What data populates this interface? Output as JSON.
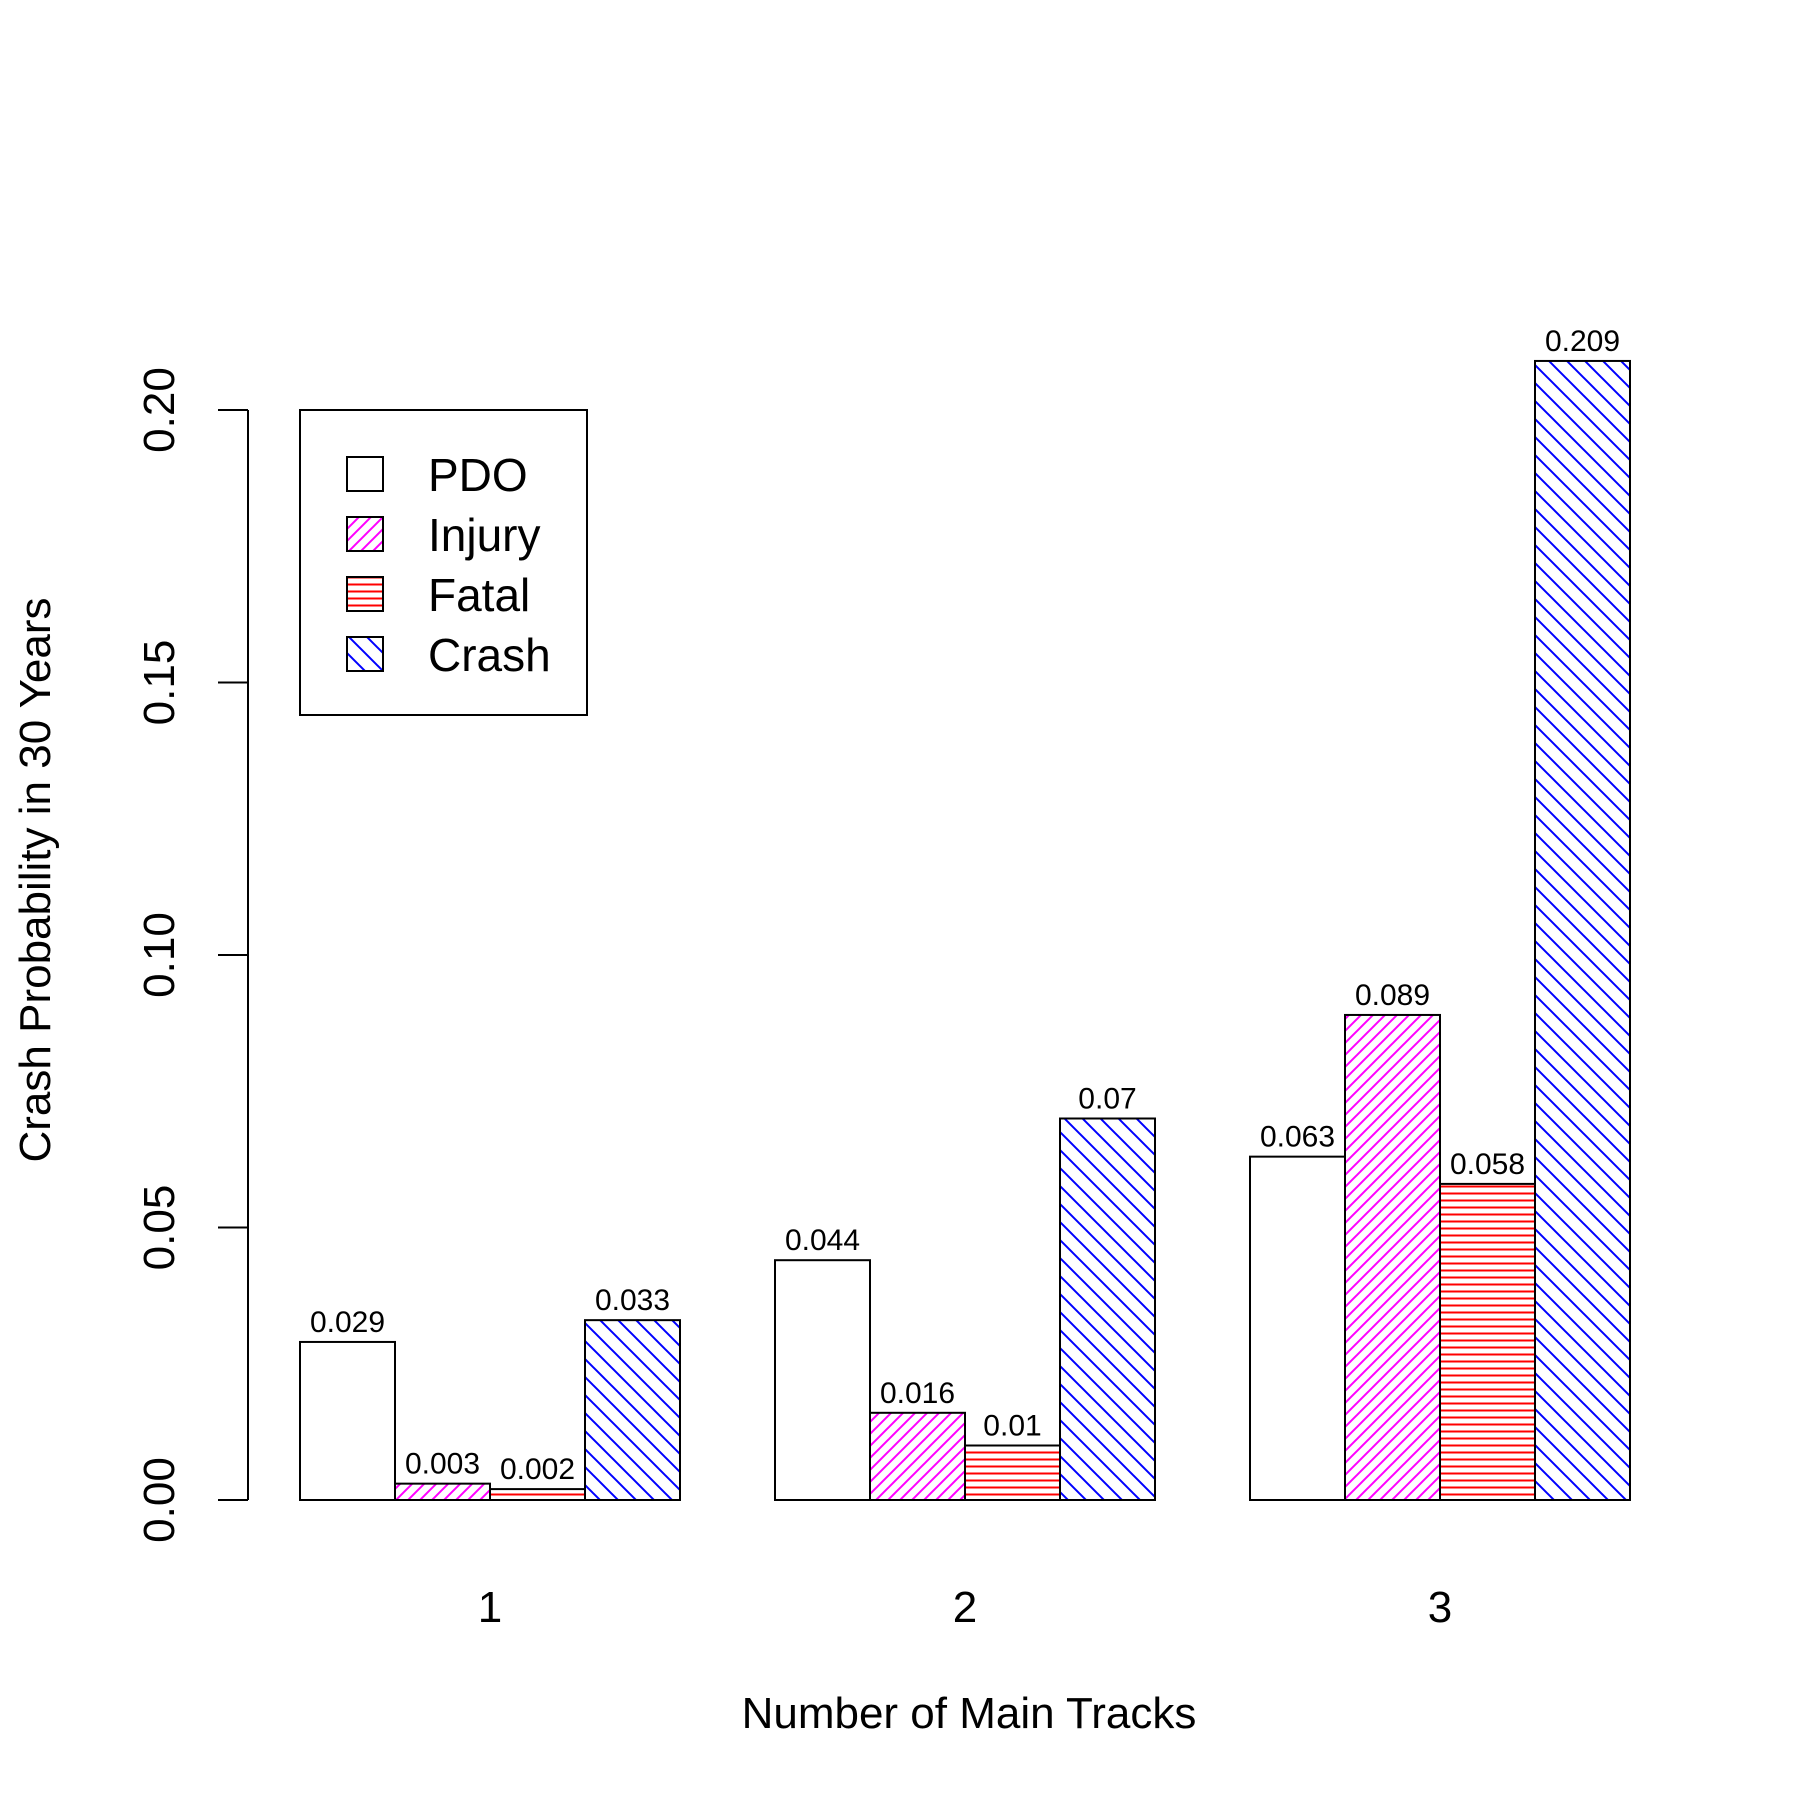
{
  "chart_data": {
    "type": "bar",
    "title": "",
    "xlabel": "Number of Main Tracks",
    "ylabel": "Crash Probability in 30 Years",
    "categories": [
      "1",
      "2",
      "3"
    ],
    "ylim": [
      0,
      0.2
    ],
    "yticks": [
      "0.00",
      "0.05",
      "0.10",
      "0.15",
      "0.20"
    ],
    "yticks_values": [
      0,
      0.05,
      0.1,
      0.15,
      0.2
    ],
    "grid": false,
    "legend_position": "top-left",
    "series": [
      {
        "name": "PDO",
        "values": [
          0.029,
          0.044,
          0.063
        ],
        "labels": [
          "0.029",
          "0.044",
          "0.063"
        ],
        "color": "#000000",
        "pattern": "none"
      },
      {
        "name": "Injury",
        "values": [
          0.003,
          0.016,
          0.089
        ],
        "labels": [
          "0.003",
          "0.016",
          "0.089"
        ],
        "color": "#ff00ff",
        "pattern": "diagonal-forward"
      },
      {
        "name": "Fatal",
        "values": [
          0.002,
          0.01,
          0.058
        ],
        "labels": [
          "0.002",
          "0.01",
          "0.058"
        ],
        "color": "#ff0000",
        "pattern": "horizontal"
      },
      {
        "name": "Crash",
        "values": [
          0.033,
          0.07,
          0.209
        ],
        "labels": [
          "0.033",
          "0.07",
          "0.209"
        ],
        "color": "#0000ff",
        "pattern": "diagonal-backward"
      }
    ]
  }
}
